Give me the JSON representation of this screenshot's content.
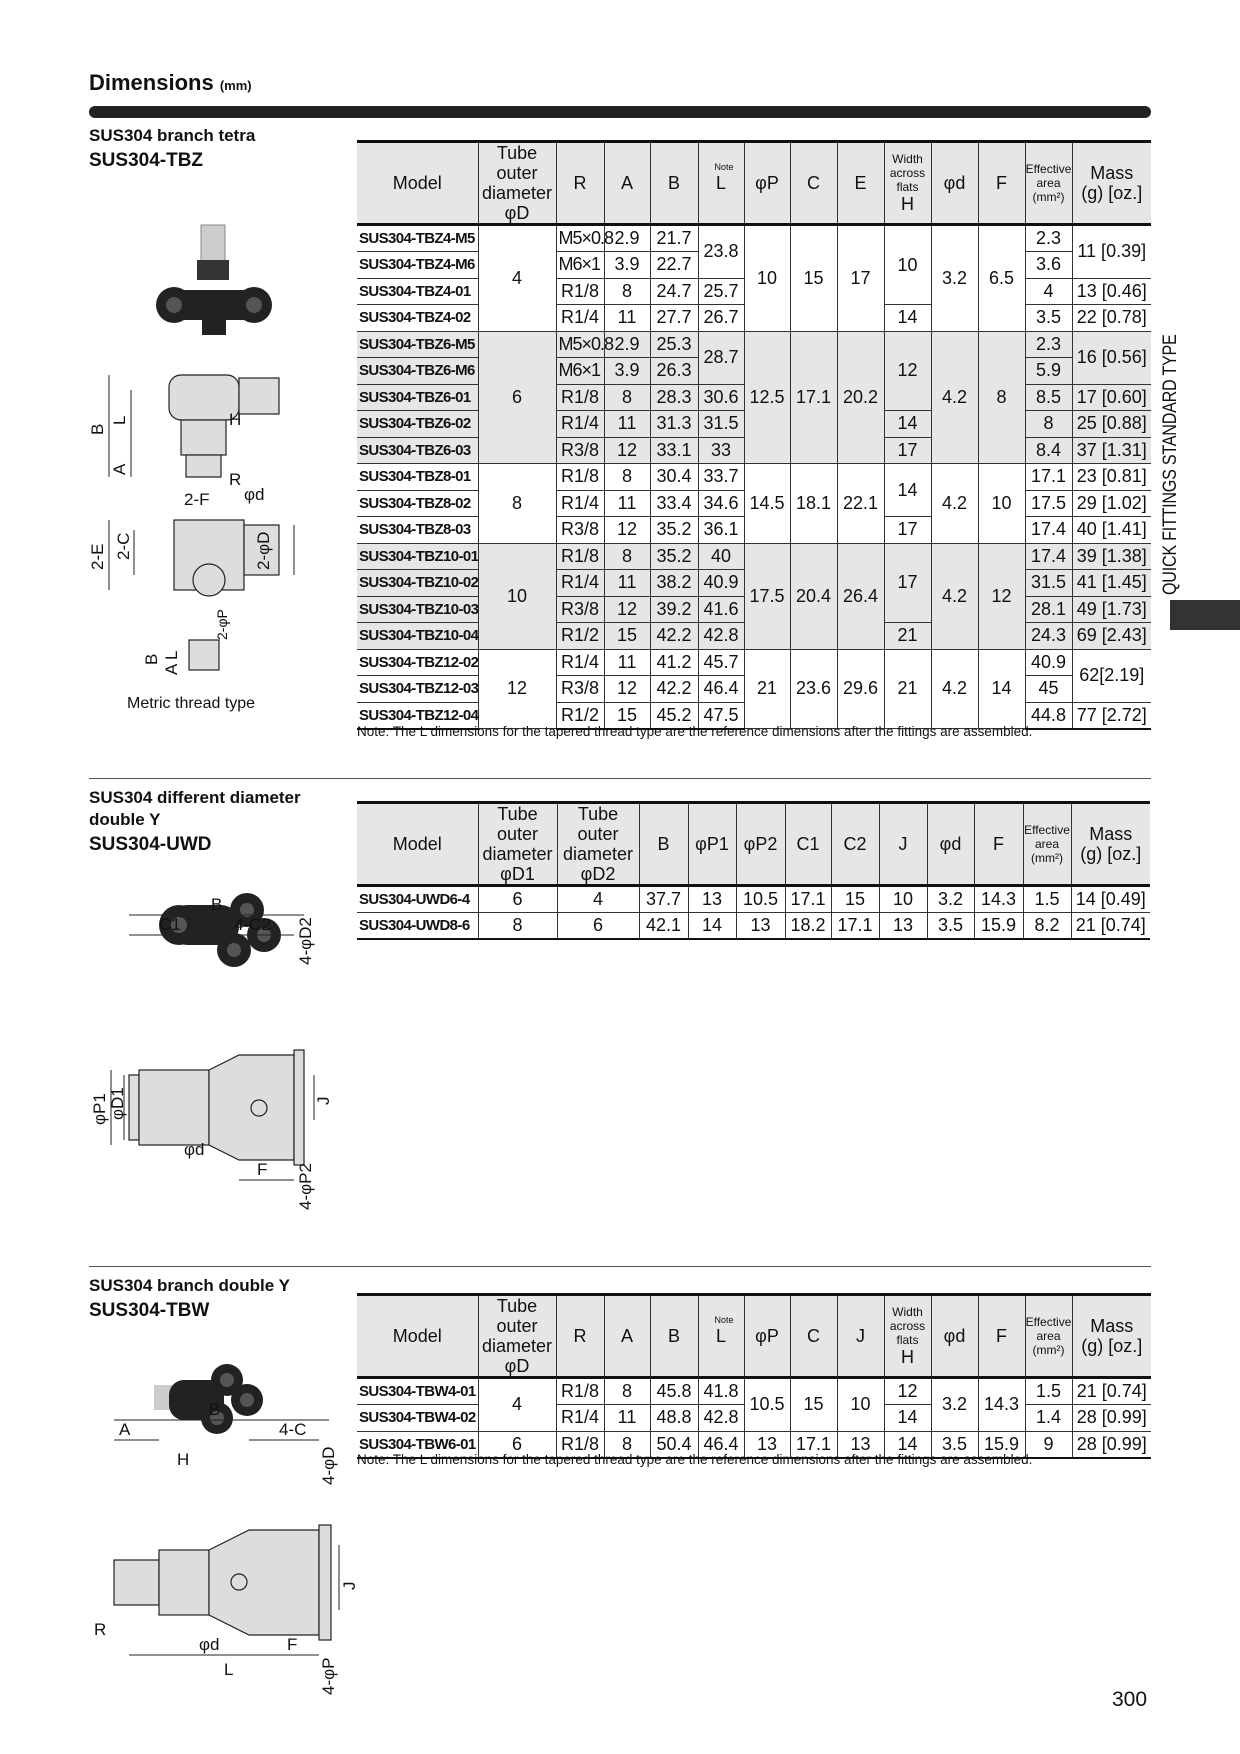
{
  "header": {
    "title": "Dimensions",
    "unit": "(mm)"
  },
  "side_tab": {
    "label": "QUICK FITTINGS STANDARD TYPE",
    "color": "#333333"
  },
  "page_number": "300",
  "tbz": {
    "label": "SUS304 branch tetra",
    "code": "SUS304-TBZ",
    "caption": "Metric thread type",
    "diagram_labels": [
      "B",
      "L",
      "H",
      "A",
      "R",
      "2-F",
      "φd",
      "2-E",
      "2-C",
      "2-φD",
      "2-φP",
      "B",
      "L",
      "A"
    ],
    "columns": [
      {
        "text": "Model"
      },
      {
        "text": "Tube outer\ndiameter\nφD"
      },
      {
        "text": "R"
      },
      {
        "text": "A"
      },
      {
        "text": "B"
      },
      {
        "text": "L",
        "note": "Note"
      },
      {
        "text": "φP"
      },
      {
        "text": "C"
      },
      {
        "text": "E"
      },
      {
        "text": "H",
        "small": "Width\nacross\nflats"
      },
      {
        "text": "φd"
      },
      {
        "text": "F"
      },
      {
        "small": "Effective\narea\n(mm²)"
      },
      {
        "text": "Mass\n(g) [oz.]"
      }
    ],
    "rows": [
      {
        "g": false,
        "cells": [
          {
            "t": "SUS304-TBZ4-M5"
          },
          {
            "t": "4",
            "rs": 4
          },
          {
            "t": "M5×0.8",
            "th": 1
          },
          {
            "t": "2.9"
          },
          {
            "t": "21.7"
          },
          {
            "t": "23.8",
            "rs": 2
          },
          {
            "t": "10",
            "rs": 4
          },
          {
            "t": "15",
            "rs": 4
          },
          {
            "t": "17",
            "rs": 4
          },
          {
            "t": "10",
            "rs": 3
          },
          {
            "t": "3.2",
            "rs": 4
          },
          {
            "t": "6.5",
            "rs": 4
          },
          {
            "t": "2.3"
          },
          {
            "t": "11 [0.39]",
            "rs": 2
          }
        ]
      },
      {
        "g": false,
        "cells": [
          {
            "t": "SUS304-TBZ4-M6"
          },
          {
            "t": "M6×1",
            "th": 1
          },
          {
            "t": "3.9"
          },
          {
            "t": "22.7"
          },
          {
            "t": "3.6"
          }
        ]
      },
      {
        "g": false,
        "cells": [
          {
            "t": "SUS304-TBZ4-01"
          },
          {
            "t": "R1/8"
          },
          {
            "t": "8"
          },
          {
            "t": "24.7"
          },
          {
            "t": "25.7"
          },
          {
            "t": "4"
          },
          {
            "t": "13 [0.46]"
          }
        ]
      },
      {
        "g": false,
        "cells": [
          {
            "t": "SUS304-TBZ4-02"
          },
          {
            "t": "R1/4"
          },
          {
            "t": "11"
          },
          {
            "t": "27.7"
          },
          {
            "t": "26.7"
          },
          {
            "t": "14"
          },
          {
            "t": "3.5"
          },
          {
            "t": "22 [0.78]"
          }
        ]
      },
      {
        "g": true,
        "cells": [
          {
            "t": "SUS304-TBZ6-M5"
          },
          {
            "t": "6",
            "rs": 5
          },
          {
            "t": "M5×0.8",
            "th": 1
          },
          {
            "t": "2.9"
          },
          {
            "t": "25.3"
          },
          {
            "t": "28.7",
            "rs": 2
          },
          {
            "t": "12.5",
            "rs": 5
          },
          {
            "t": "17.1",
            "rs": 5
          },
          {
            "t": "20.2",
            "rs": 5
          },
          {
            "t": "12",
            "rs": 3
          },
          {
            "t": "4.2",
            "rs": 5
          },
          {
            "t": "8",
            "rs": 5
          },
          {
            "t": "2.3"
          },
          {
            "t": "16 [0.56]",
            "rs": 2
          }
        ]
      },
      {
        "g": true,
        "cells": [
          {
            "t": "SUS304-TBZ6-M6"
          },
          {
            "t": "M6×1",
            "th": 1
          },
          {
            "t": "3.9"
          },
          {
            "t": "26.3"
          },
          {
            "t": "5.9"
          }
        ]
      },
      {
        "g": true,
        "cells": [
          {
            "t": "SUS304-TBZ6-01"
          },
          {
            "t": "R1/8"
          },
          {
            "t": "8"
          },
          {
            "t": "28.3"
          },
          {
            "t": "30.6"
          },
          {
            "t": "8.5"
          },
          {
            "t": "17 [0.60]"
          }
        ]
      },
      {
        "g": true,
        "cells": [
          {
            "t": "SUS304-TBZ6-02"
          },
          {
            "t": "R1/4"
          },
          {
            "t": "11"
          },
          {
            "t": "31.3"
          },
          {
            "t": "31.5"
          },
          {
            "t": "14"
          },
          {
            "t": "8"
          },
          {
            "t": "25 [0.88]"
          }
        ]
      },
      {
        "g": true,
        "cells": [
          {
            "t": "SUS304-TBZ6-03"
          },
          {
            "t": "R3/8"
          },
          {
            "t": "12"
          },
          {
            "t": "33.1"
          },
          {
            "t": "33"
          },
          {
            "t": "17"
          },
          {
            "t": "8.4"
          },
          {
            "t": "37 [1.31]"
          }
        ]
      },
      {
        "g": false,
        "cells": [
          {
            "t": "SUS304-TBZ8-01"
          },
          {
            "t": "8",
            "rs": 3
          },
          {
            "t": "R1/8"
          },
          {
            "t": "8"
          },
          {
            "t": "30.4"
          },
          {
            "t": "33.7"
          },
          {
            "t": "14.5",
            "rs": 3
          },
          {
            "t": "18.1",
            "rs": 3
          },
          {
            "t": "22.1",
            "rs": 3
          },
          {
            "t": "14",
            "rs": 2
          },
          {
            "t": "4.2",
            "rs": 3
          },
          {
            "t": "10",
            "rs": 3
          },
          {
            "t": "17.1"
          },
          {
            "t": "23 [0.81]"
          }
        ]
      },
      {
        "g": false,
        "cells": [
          {
            "t": "SUS304-TBZ8-02"
          },
          {
            "t": "R1/4"
          },
          {
            "t": "11"
          },
          {
            "t": "33.4"
          },
          {
            "t": "34.6"
          },
          {
            "t": "17.5"
          },
          {
            "t": "29 [1.02]"
          }
        ]
      },
      {
        "g": false,
        "cells": [
          {
            "t": "SUS304-TBZ8-03"
          },
          {
            "t": "R3/8"
          },
          {
            "t": "12"
          },
          {
            "t": "35.2"
          },
          {
            "t": "36.1"
          },
          {
            "t": "17"
          },
          {
            "t": "17.4"
          },
          {
            "t": "40 [1.41]"
          }
        ]
      },
      {
        "g": true,
        "cells": [
          {
            "t": "SUS304-TBZ10-01"
          },
          {
            "t": "10",
            "rs": 4
          },
          {
            "t": "R1/8"
          },
          {
            "t": "8"
          },
          {
            "t": "35.2"
          },
          {
            "t": "40"
          },
          {
            "t": "17.5",
            "rs": 4
          },
          {
            "t": "20.4",
            "rs": 4
          },
          {
            "t": "26.4",
            "rs": 4
          },
          {
            "t": "17",
            "rs": 3
          },
          {
            "t": "4.2",
            "rs": 4
          },
          {
            "t": "12",
            "rs": 4
          },
          {
            "t": "17.4"
          },
          {
            "t": "39 [1.38]"
          }
        ]
      },
      {
        "g": true,
        "cells": [
          {
            "t": "SUS304-TBZ10-02"
          },
          {
            "t": "R1/4"
          },
          {
            "t": "11"
          },
          {
            "t": "38.2"
          },
          {
            "t": "40.9"
          },
          {
            "t": "31.5"
          },
          {
            "t": "41 [1.45]"
          }
        ]
      },
      {
        "g": true,
        "cells": [
          {
            "t": "SUS304-TBZ10-03"
          },
          {
            "t": "R3/8"
          },
          {
            "t": "12"
          },
          {
            "t": "39.2"
          },
          {
            "t": "41.6"
          },
          {
            "t": "28.1"
          },
          {
            "t": "49 [1.73]"
          }
        ]
      },
      {
        "g": true,
        "cells": [
          {
            "t": "SUS304-TBZ10-04"
          },
          {
            "t": "R1/2"
          },
          {
            "t": "15"
          },
          {
            "t": "42.2"
          },
          {
            "t": "42.8"
          },
          {
            "t": "21"
          },
          {
            "t": "24.3"
          },
          {
            "t": "69 [2.43]"
          }
        ]
      },
      {
        "g": false,
        "cells": [
          {
            "t": "SUS304-TBZ12-02"
          },
          {
            "t": "12",
            "rs": 3
          },
          {
            "t": "R1/4"
          },
          {
            "t": "11"
          },
          {
            "t": "41.2"
          },
          {
            "t": "45.7"
          },
          {
            "t": "21",
            "rs": 3
          },
          {
            "t": "23.6",
            "rs": 3
          },
          {
            "t": "29.6",
            "rs": 3
          },
          {
            "t": "21",
            "rs": 3
          },
          {
            "t": "4.2",
            "rs": 3
          },
          {
            "t": "14",
            "rs": 3
          },
          {
            "t": "40.9"
          },
          {
            "t": "62[2.19]",
            "rs": 2
          }
        ]
      },
      {
        "g": false,
        "cells": [
          {
            "t": "SUS304-TBZ12-03"
          },
          {
            "t": "R3/8"
          },
          {
            "t": "12"
          },
          {
            "t": "42.2"
          },
          {
            "t": "46.4"
          },
          {
            "t": "45"
          }
        ]
      },
      {
        "g": false,
        "cells": [
          {
            "t": "SUS304-TBZ12-04"
          },
          {
            "t": "R1/2"
          },
          {
            "t": "15"
          },
          {
            "t": "45.2"
          },
          {
            "t": "47.5"
          },
          {
            "t": "44.8"
          },
          {
            "t": "77 [2.72]"
          }
        ]
      }
    ],
    "note": "Note: The L dimensions for the tapered thread type are the reference dimensions after the fittings are assembled."
  },
  "uwd": {
    "label": "SUS304 different diameter\ndouble Y",
    "code": "SUS304-UWD",
    "diagram_labels": [
      "B",
      "C1",
      "4-C2",
      "4-φD2",
      "φP1",
      "φD1",
      "φd",
      "F",
      "J",
      "4-φP2"
    ],
    "columns": [
      {
        "text": "Model"
      },
      {
        "text": "Tube outer\ndiameter\nφD1"
      },
      {
        "text": "Tube outer\ndiameter\nφD2"
      },
      {
        "text": "B"
      },
      {
        "text": "φP1"
      },
      {
        "text": "φP2"
      },
      {
        "text": "C1"
      },
      {
        "text": "C2"
      },
      {
        "text": "J"
      },
      {
        "text": "φd"
      },
      {
        "text": "F"
      },
      {
        "small": "Effective\narea\n(mm²)"
      },
      {
        "text": "Mass\n(g) [oz.]"
      }
    ],
    "rows": [
      {
        "g": false,
        "cells": [
          {
            "t": "SUS304-UWD6-4"
          },
          {
            "t": "6"
          },
          {
            "t": "4"
          },
          {
            "t": "37.7"
          },
          {
            "t": "13"
          },
          {
            "t": "10.5"
          },
          {
            "t": "17.1"
          },
          {
            "t": "15"
          },
          {
            "t": "10"
          },
          {
            "t": "3.2"
          },
          {
            "t": "14.3"
          },
          {
            "t": "1.5"
          },
          {
            "t": "14 [0.49]"
          }
        ]
      },
      {
        "g": false,
        "cells": [
          {
            "t": "SUS304-UWD8-6"
          },
          {
            "t": "8"
          },
          {
            "t": "6"
          },
          {
            "t": "42.1"
          },
          {
            "t": "14"
          },
          {
            "t": "13"
          },
          {
            "t": "18.2"
          },
          {
            "t": "17.1"
          },
          {
            "t": "13"
          },
          {
            "t": "3.5"
          },
          {
            "t": "15.9"
          },
          {
            "t": "8.2"
          },
          {
            "t": "21 [0.74]"
          }
        ]
      }
    ]
  },
  "tbw": {
    "label": "SUS304 branch double Y",
    "code": "SUS304-TBW",
    "diagram_labels": [
      "B",
      "A",
      "4-C",
      "H",
      "4-φD",
      "J",
      "R",
      "φd",
      "F",
      "L",
      "4-φP"
    ],
    "columns": [
      {
        "text": "Model"
      },
      {
        "text": "Tube outer\ndiameter\nφD"
      },
      {
        "text": "R"
      },
      {
        "text": "A"
      },
      {
        "text": "B"
      },
      {
        "text": "L",
        "note": "Note"
      },
      {
        "text": "φP"
      },
      {
        "text": "C"
      },
      {
        "text": "J"
      },
      {
        "text": "H",
        "small": "Width\nacross\nflats"
      },
      {
        "text": "φd"
      },
      {
        "text": "F"
      },
      {
        "small": "Effective\narea\n(mm²)"
      },
      {
        "text": "Mass\n(g) [oz.]"
      }
    ],
    "rows": [
      {
        "g": false,
        "cells": [
          {
            "t": "SUS304-TBW4-01"
          },
          {
            "t": "4",
            "rs": 2
          },
          {
            "t": "R1/8"
          },
          {
            "t": "8"
          },
          {
            "t": "45.8"
          },
          {
            "t": "41.8"
          },
          {
            "t": "10.5",
            "rs": 2
          },
          {
            "t": "15",
            "rs": 2
          },
          {
            "t": "10",
            "rs": 2
          },
          {
            "t": "12"
          },
          {
            "t": "3.2",
            "rs": 2
          },
          {
            "t": "14.3",
            "rs": 2
          },
          {
            "t": "1.5"
          },
          {
            "t": "21 [0.74]"
          }
        ]
      },
      {
        "g": false,
        "cells": [
          {
            "t": "SUS304-TBW4-02"
          },
          {
            "t": "R1/4"
          },
          {
            "t": "11"
          },
          {
            "t": "48.8"
          },
          {
            "t": "42.8"
          },
          {
            "t": "14"
          },
          {
            "t": "1.4"
          },
          {
            "t": "28 [0.99]"
          }
        ]
      },
      {
        "g": false,
        "cells": [
          {
            "t": "SUS304-TBW6-01"
          },
          {
            "t": "6"
          },
          {
            "t": "R1/8"
          },
          {
            "t": "8"
          },
          {
            "t": "50.4"
          },
          {
            "t": "46.4"
          },
          {
            "t": "13"
          },
          {
            "t": "17.1"
          },
          {
            "t": "13"
          },
          {
            "t": "14"
          },
          {
            "t": "3.5"
          },
          {
            "t": "15.9"
          },
          {
            "t": "9"
          },
          {
            "t": "28 [0.99]"
          }
        ]
      }
    ],
    "note": "Note: The L dimensions for the tapered thread type are the reference dimensions after the fittings are assembled."
  }
}
